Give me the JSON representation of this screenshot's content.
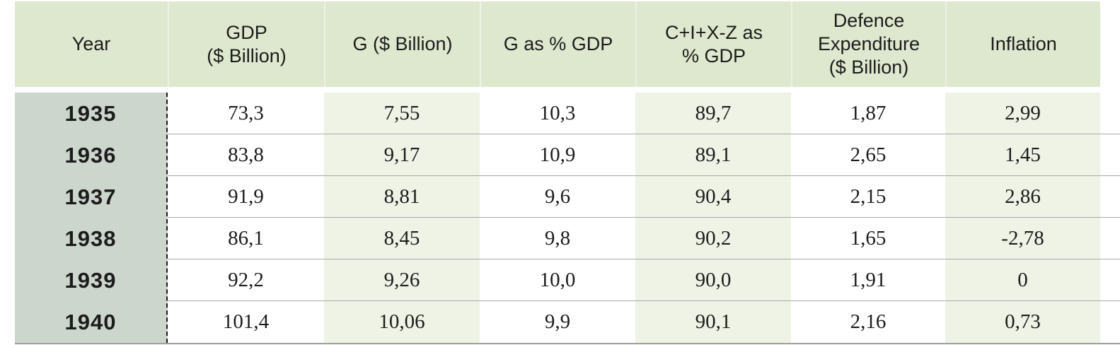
{
  "chart_data": {
    "type": "table",
    "title": "",
    "columns": [
      "Year",
      "GDP ($ Billion)",
      "G ($ Billion)",
      "G as % GDP",
      "C+I+X-Z as % GDP",
      "Defence Expenditure ($ Billion)",
      "Inflation"
    ],
    "rows": [
      [
        "1935",
        "73,3",
        "7,55",
        "10,3",
        "89,7",
        "1,87",
        "2,99"
      ],
      [
        "1936",
        "83,8",
        "9,17",
        "10,9",
        "89,1",
        "2,65",
        "1,45"
      ],
      [
        "1937",
        "91,9",
        "8,81",
        "9,6",
        "90,4",
        "2,15",
        "2,86"
      ],
      [
        "1938",
        "86,1",
        "8,45",
        "9,8",
        "90,2",
        "1,65",
        "-2,78"
      ],
      [
        "1939",
        "92,2",
        "9,26",
        "10,0",
        "90,0",
        "1,91",
        "0"
      ],
      [
        "1940",
        "101,4",
        "10,06",
        "9,9",
        "90,1",
        "2,16",
        "0,73"
      ]
    ],
    "layout": {
      "decimal_separator": "comma",
      "striped_columns": [
        "G ($ Billion)",
        "C+I+X-Z as % GDP",
        "Inflation"
      ],
      "year_column_divider": "dashed"
    }
  },
  "table": {
    "header_display": [
      "Year",
      "GDP\n($ Billion)",
      "G ($ Billion)",
      "G as % GDP",
      "C+I+X-Z as\n% GDP",
      "Defence\nExpenditure\n($ Billion)",
      "Inflation"
    ]
  },
  "colors": {
    "header_bg": "#dee8ce",
    "year_col_bg": "#ccd6cd",
    "stripe_bg": "#eef3e6",
    "row_line": "#a9a9a9",
    "bottom_line": "#9f9f9f",
    "dash_line": "#1a1a1a",
    "text": "#1c1c1c"
  }
}
